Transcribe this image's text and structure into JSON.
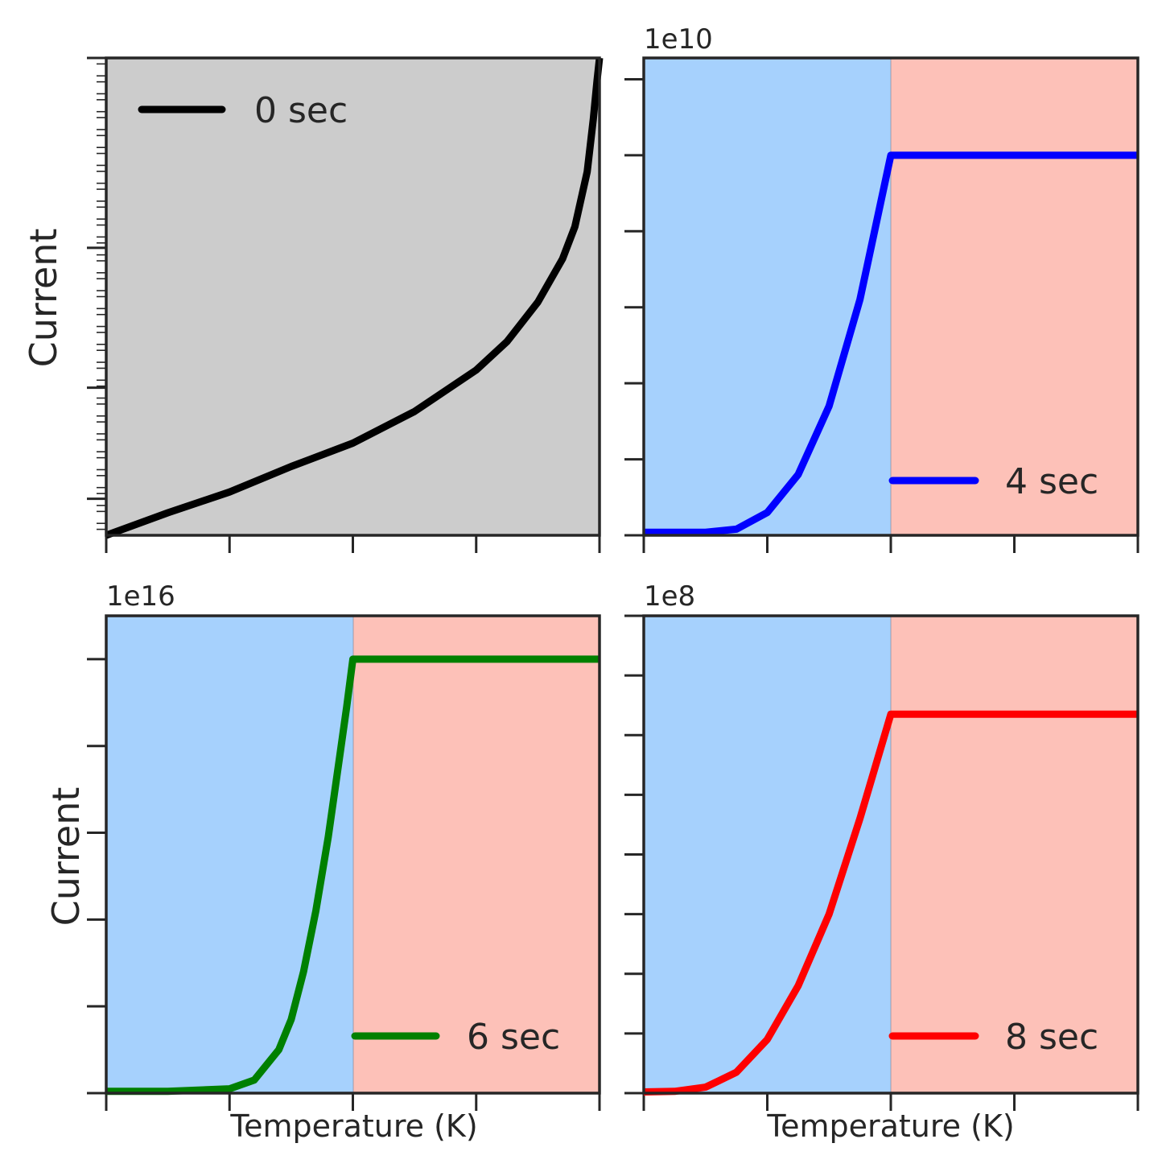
{
  "colors": {
    "left_region": "#a6d1fd",
    "right_region": "#fdc1b8",
    "log_background": "#cccccc",
    "spine": "#262626"
  },
  "panels": [
    {
      "id": "top-left",
      "ylabel": "Current",
      "xlabel": "",
      "offset_text": "",
      "legend": "0 sec",
      "legend_position": "top-left",
      "background": "gray"
    },
    {
      "id": "top-right",
      "ylabel": "",
      "xlabel": "",
      "offset_text": "1e10",
      "legend": "4 sec",
      "legend_position": "bottom-right",
      "background": "split"
    },
    {
      "id": "bottom-left",
      "ylabel": "Current",
      "xlabel": "Temperature (K)",
      "offset_text": "1e16",
      "legend": "6 sec",
      "legend_position": "bottom-right",
      "background": "split"
    },
    {
      "id": "bottom-right",
      "ylabel": "",
      "xlabel": "Temperature (K)",
      "offset_text": "1e8",
      "legend": "8 sec",
      "legend_position": "bottom-right",
      "background": "split"
    }
  ],
  "chart_data": [
    {
      "type": "line",
      "yscale": "log",
      "xlim": [
        0,
        4
      ],
      "ylim": [
        1.75,
        10
      ],
      "x_ticks": [
        0,
        1,
        2,
        3,
        4
      ],
      "y_ticks": [
        2,
        3,
        5,
        10
      ],
      "series": [
        {
          "name": "0 sec",
          "color": "#000000",
          "x": [
            0,
            0.5,
            1,
            1.5,
            2,
            2.5,
            3,
            3.25,
            3.5,
            3.7,
            3.8,
            3.9,
            3.95,
            3.98,
            4.0
          ],
          "y": [
            1.75,
            1.9,
            2.05,
            2.25,
            2.45,
            2.75,
            3.2,
            3.55,
            4.1,
            4.8,
            5.4,
            6.6,
            8.0,
            9.2,
            10
          ]
        }
      ]
    },
    {
      "type": "line",
      "xlim": [
        0,
        4
      ],
      "ylim": [
        0,
        6.28
      ],
      "x_ticks": [
        0,
        1,
        2,
        3,
        4
      ],
      "y_ticks": [
        0,
        1,
        2,
        3,
        4,
        5,
        6
      ],
      "threshold_x": 2,
      "series": [
        {
          "name": "4 sec",
          "color": "#0000ff",
          "x": [
            0,
            0.25,
            0.5,
            0.75,
            1,
            1.25,
            1.5,
            1.75,
            2,
            2.5,
            3,
            3.5,
            4
          ],
          "y": [
            0.04,
            0.04,
            0.04,
            0.08,
            0.3,
            0.8,
            1.7,
            3.1,
            5.0,
            5.0,
            5.0,
            5.0,
            5.0
          ]
        }
      ]
    },
    {
      "type": "line",
      "xlim": [
        0,
        4
      ],
      "ylim": [
        0,
        5.5
      ],
      "x_ticks": [
        0,
        1,
        2,
        3,
        4
      ],
      "y_ticks": [
        0,
        1,
        2,
        3,
        4,
        5
      ],
      "threshold_x": 2,
      "series": [
        {
          "name": "6 sec",
          "color": "#008000",
          "x": [
            0,
            0.5,
            1,
            1.2,
            1.4,
            1.5,
            1.6,
            1.7,
            1.8,
            1.9,
            1.95,
            2,
            2.5,
            3,
            3.5,
            4
          ],
          "y": [
            0.02,
            0.02,
            0.05,
            0.15,
            0.5,
            0.85,
            1.4,
            2.1,
            2.95,
            3.95,
            4.45,
            5.0,
            5.0,
            5.0,
            5.0,
            5.0
          ]
        }
      ]
    },
    {
      "type": "line",
      "xlim": [
        0,
        4
      ],
      "ylim": [
        0,
        8
      ],
      "x_ticks": [
        0,
        1,
        2,
        3,
        4
      ],
      "y_ticks": [
        0,
        1,
        2,
        3,
        4,
        5,
        6,
        7,
        8
      ],
      "threshold_x": 2,
      "series": [
        {
          "name": "8 sec",
          "color": "#ff0000",
          "x": [
            0,
            0.25,
            0.5,
            0.75,
            1,
            1.25,
            1.5,
            1.75,
            2,
            2.5,
            3,
            3.5,
            4
          ],
          "y": [
            0.02,
            0.03,
            0.1,
            0.35,
            0.9,
            1.8,
            3.0,
            4.6,
            6.35,
            6.35,
            6.35,
            6.35,
            6.35
          ]
        }
      ]
    }
  ]
}
